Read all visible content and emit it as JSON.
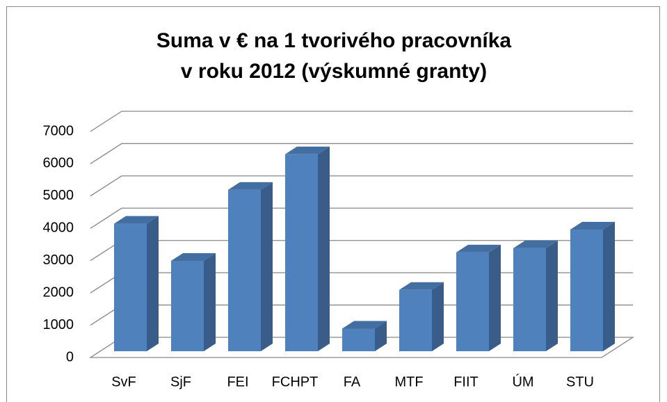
{
  "chart_data": {
    "type": "bar3d",
    "title": [
      "Suma v € na 1 tvorivého pracovníka",
      "v roku 2012 (výskumné granty)"
    ],
    "categories": [
      "SvF",
      "SjF",
      "FEI",
      "FCHPT",
      "FA",
      "MTF",
      "FIIT",
      "ÚM",
      "STU"
    ],
    "values": [
      3950,
      2800,
      5000,
      6100,
      700,
      1900,
      3060,
      3190,
      3770
    ],
    "color": "#4f81bd",
    "ylim": [
      0,
      7000
    ],
    "yticks": [
      0,
      1000,
      2000,
      3000,
      4000,
      5000,
      6000,
      7000
    ],
    "grid": true
  }
}
